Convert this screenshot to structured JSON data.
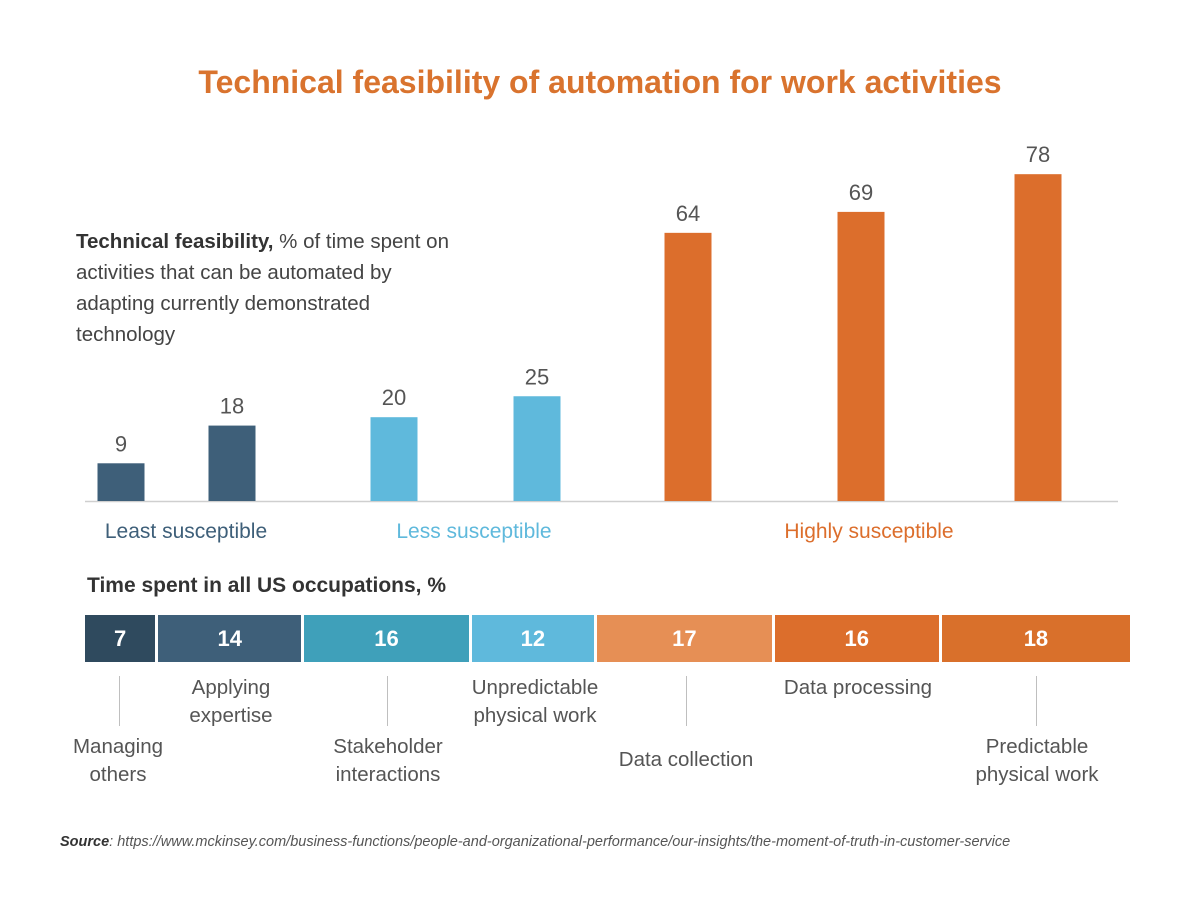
{
  "header": {
    "title": "Technical feasibility of automation for work activities"
  },
  "description": {
    "bold": "Technical feasibility,",
    "text": " % of time spent on activities that can be automated by adapting currently demonstrated technology"
  },
  "colors": {
    "dark_navy": "#2f4a5e",
    "slate_blue": "#3e5f79",
    "teal": "#3fa0ba",
    "light_blue": "#5fb9dc",
    "light_orange": "#e68f55",
    "orange": "#dc6e2c",
    "dark_orange": "#d9702b"
  },
  "chart_data": {
    "type": "bar",
    "title": "Technical feasibility of automation for work activities",
    "ylabel": "Technical feasibility, % of time spent on activities that can be automated by adapting currently demonstrated technology",
    "categories": [
      "Managing others",
      "Applying expertise",
      "Stakeholder interactions",
      "Unpredictable physical work",
      "Data collection",
      "Data processing",
      "Predictable physical work"
    ],
    "values": [
      9,
      18,
      20,
      25,
      64,
      69,
      78
    ],
    "bar_colors": [
      "#3e5f79",
      "#3e5f79",
      "#5fb9dc",
      "#5fb9dc",
      "#dc6e2c",
      "#dc6e2c",
      "#dc6e2c"
    ],
    "groups": [
      {
        "label": "Least susceptible",
        "color": "#3e5f79"
      },
      {
        "label": "Less susceptible",
        "color": "#5fb9dc"
      },
      {
        "label": "Highly susceptible",
        "color": "#dc6e2c"
      }
    ],
    "ylim": [
      0,
      85
    ],
    "grid": false
  },
  "time_spent": {
    "title": "Time spent in all US occupations, %",
    "segments": [
      {
        "label": "Managing others",
        "value": 7,
        "color": "#2f4a5e"
      },
      {
        "label": "Applying expertise",
        "value": 14,
        "color": "#3e5f79"
      },
      {
        "label": "Stakeholder interactions",
        "value": 16,
        "color": "#3fa0ba"
      },
      {
        "label": "Unpredictable physical work",
        "value": 12,
        "color": "#5fb9dc"
      },
      {
        "label": "Data collection",
        "value": 17,
        "color": "#e68f55"
      },
      {
        "label": "Data processing",
        "value": 16,
        "color": "#dc6e2c"
      },
      {
        "label": "Predictable physical work",
        "value": 18,
        "color": "#d9702b"
      }
    ]
  },
  "activity_labels": {
    "managing": [
      "Managing",
      "others"
    ],
    "applying": [
      "Applying",
      "expertise"
    ],
    "stakeholder": [
      "Stakeholder",
      "interactions"
    ],
    "unpredictable": [
      "Unpredictable",
      "physical work"
    ],
    "data_collection": [
      "Data collection"
    ],
    "data_processing": [
      "Data processing"
    ],
    "predictable": [
      "Predictable",
      "physical work"
    ]
  },
  "source": {
    "label": "Source",
    "url": ": https://www.mckinsey.com/business-functions/people-and-organizational-performance/our-insights/the-moment-of-truth-in-customer-service"
  }
}
